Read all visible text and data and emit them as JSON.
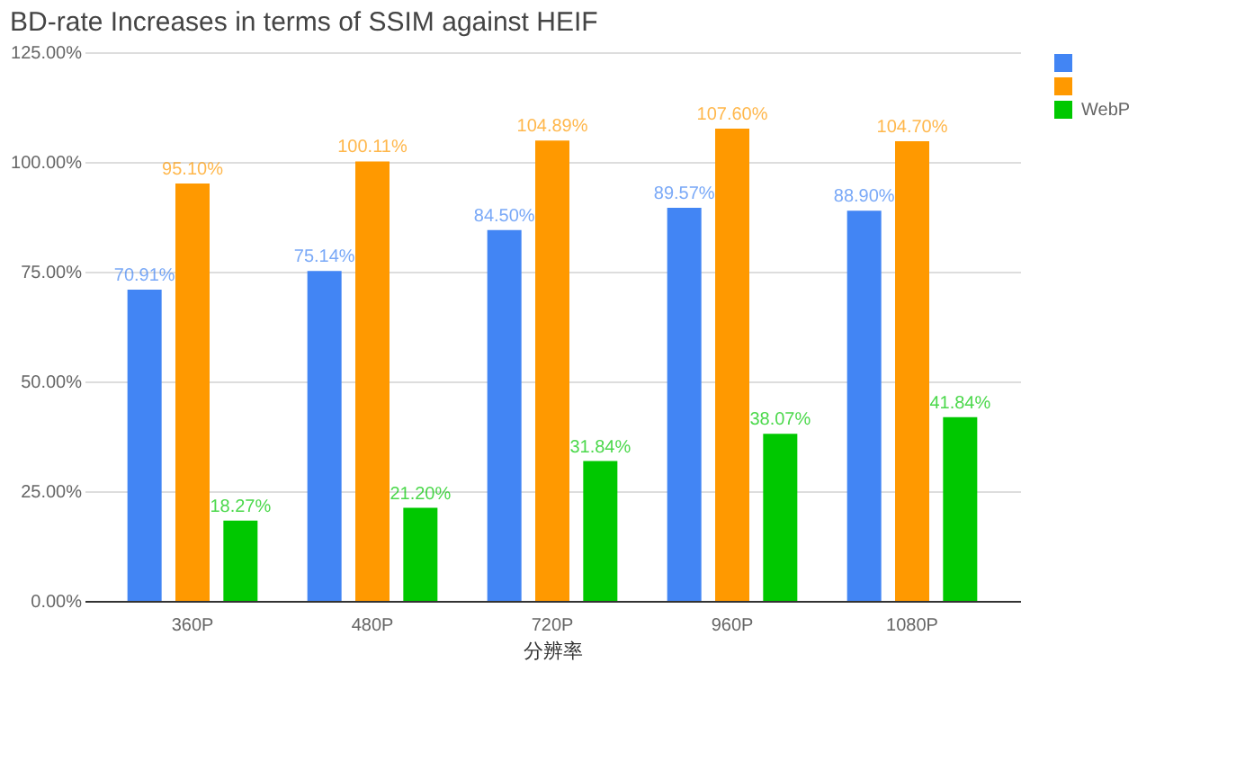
{
  "chart_data": {
    "type": "bar",
    "title": "BD-rate Increases in terms of SSIM against HEIF",
    "xlabel": "分辨率",
    "categories": [
      "360P",
      "480P",
      "720P",
      "960P",
      "1080P"
    ],
    "series": [
      {
        "color": "#4285f4",
        "values": [
          70.91,
          75.14,
          84.5,
          89.57,
          88.9
        ],
        "value_labels": [
          "70.91%",
          "75.14%",
          "84.50%",
          "89.57%",
          "88.90%"
        ]
      },
      {
        "color": "#ff9900",
        "values": [
          95.1,
          100.11,
          104.89,
          107.6,
          104.7
        ],
        "value_labels": [
          "95.10%",
          "100.11%",
          "104.89%",
          "107.60%",
          "104.70%"
        ]
      },
      {
        "name": "WebP",
        "color": "#00c800",
        "values": [
          18.27,
          21.2,
          31.84,
          38.07,
          41.84
        ],
        "value_labels": [
          "18.27%",
          "21.20%",
          "31.84%",
          "38.07%",
          "41.84%"
        ]
      }
    ],
    "ylim": [
      0,
      125
    ],
    "yticks": [
      {
        "value": 0,
        "label": "0.00%"
      },
      {
        "value": 25,
        "label": "25.00%"
      },
      {
        "value": 50,
        "label": "50.00%"
      },
      {
        "value": 75,
        "label": "75.00%"
      },
      {
        "value": 100,
        "label": "100.00%"
      },
      {
        "value": 125,
        "label": "125.00%"
      }
    ],
    "grid": "y",
    "legend": "top right"
  }
}
